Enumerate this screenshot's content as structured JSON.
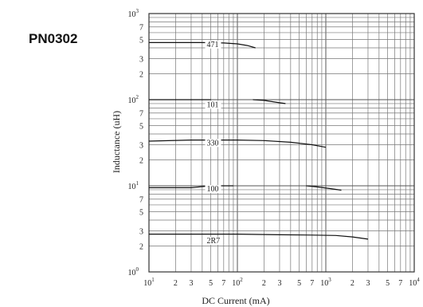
{
  "part_label": "PN0302",
  "chart_data": {
    "type": "line",
    "title": "",
    "xlabel": "DC Current (mA)",
    "ylabel": "Inductance (uH)",
    "x_scale": "log",
    "y_scale": "log",
    "xlim": [
      10,
      10000
    ],
    "ylim": [
      1,
      1000
    ],
    "grid": true,
    "x_ticks": [
      {
        "value": 10,
        "base": "10",
        "exp": "1"
      },
      {
        "value": 20,
        "base": "2",
        "exp": ""
      },
      {
        "value": 30,
        "base": "3",
        "exp": ""
      },
      {
        "value": 50,
        "base": "5",
        "exp": ""
      },
      {
        "value": 70,
        "base": "7",
        "exp": ""
      },
      {
        "value": 100,
        "base": "10",
        "exp": "2"
      },
      {
        "value": 200,
        "base": "2",
        "exp": ""
      },
      {
        "value": 300,
        "base": "3",
        "exp": ""
      },
      {
        "value": 500,
        "base": "5",
        "exp": ""
      },
      {
        "value": 700,
        "base": "7",
        "exp": ""
      },
      {
        "value": 1000,
        "base": "10",
        "exp": "3"
      },
      {
        "value": 2000,
        "base": "2",
        "exp": ""
      },
      {
        "value": 3000,
        "base": "3",
        "exp": ""
      },
      {
        "value": 5000,
        "base": "5",
        "exp": ""
      },
      {
        "value": 7000,
        "base": "7",
        "exp": ""
      },
      {
        "value": 10000,
        "base": "10",
        "exp": "4"
      }
    ],
    "y_ticks": [
      {
        "value": 1,
        "base": "10",
        "exp": "0"
      },
      {
        "value": 2,
        "base": "2",
        "exp": ""
      },
      {
        "value": 3,
        "base": "3",
        "exp": ""
      },
      {
        "value": 5,
        "base": "5",
        "exp": ""
      },
      {
        "value": 7,
        "base": "7",
        "exp": ""
      },
      {
        "value": 10,
        "base": "10",
        "exp": "1"
      },
      {
        "value": 20,
        "base": "2",
        "exp": ""
      },
      {
        "value": 30,
        "base": "3",
        "exp": ""
      },
      {
        "value": 50,
        "base": "5",
        "exp": ""
      },
      {
        "value": 70,
        "base": "7",
        "exp": ""
      },
      {
        "value": 100,
        "base": "10",
        "exp": "2"
      },
      {
        "value": 200,
        "base": "2",
        "exp": ""
      },
      {
        "value": 300,
        "base": "3",
        "exp": ""
      },
      {
        "value": 500,
        "base": "5",
        "exp": ""
      },
      {
        "value": 700,
        "base": "7",
        "exp": ""
      },
      {
        "value": 1000,
        "base": "10",
        "exp": "3"
      }
    ],
    "series": [
      {
        "name": "471",
        "points": [
          [
            10,
            460
          ],
          [
            20,
            460
          ],
          [
            40,
            460
          ],
          [
            70,
            455
          ],
          [
            100,
            445
          ],
          [
            130,
            425
          ],
          [
            160,
            400
          ]
        ],
        "label_at": [
          45,
          410
        ]
      },
      {
        "name": "101",
        "segments": [
          [
            [
              10,
              100
            ],
            [
              20,
              100
            ],
            [
              40,
              100
            ],
            [
              50,
              100
            ]
          ],
          [
            [
              150,
              100
            ],
            [
              200,
              98
            ],
            [
              280,
              93
            ],
            [
              350,
              90
            ]
          ]
        ],
        "label_at": [
          45,
          82
        ]
      },
      {
        "name": "330",
        "points": [
          [
            10,
            33
          ],
          [
            30,
            34
          ],
          [
            100,
            34
          ],
          [
            200,
            33.5
          ],
          [
            400,
            32
          ],
          [
            700,
            30
          ],
          [
            1000,
            28
          ]
        ],
        "label_at": [
          45,
          29.5
        ]
      },
      {
        "name": "100",
        "segments": [
          [
            [
              10,
              9.5
            ],
            [
              30,
              9.5
            ],
            [
              50,
              10
            ],
            [
              70,
              10
            ],
            [
              90,
              10
            ]
          ],
          [
            [
              600,
              10
            ],
            [
              800,
              9.7
            ],
            [
              1100,
              9.3
            ],
            [
              1500,
              8.9
            ]
          ]
        ],
        "label_at": [
          45,
          8.6
        ]
      },
      {
        "name": "2R7",
        "points": [
          [
            10,
            2.75
          ],
          [
            50,
            2.75
          ],
          [
            100,
            2.75
          ],
          [
            300,
            2.7
          ],
          [
            700,
            2.68
          ],
          [
            1300,
            2.65
          ],
          [
            2000,
            2.55
          ],
          [
            3000,
            2.4
          ]
        ],
        "label_at": [
          45,
          2.15
        ]
      }
    ]
  }
}
